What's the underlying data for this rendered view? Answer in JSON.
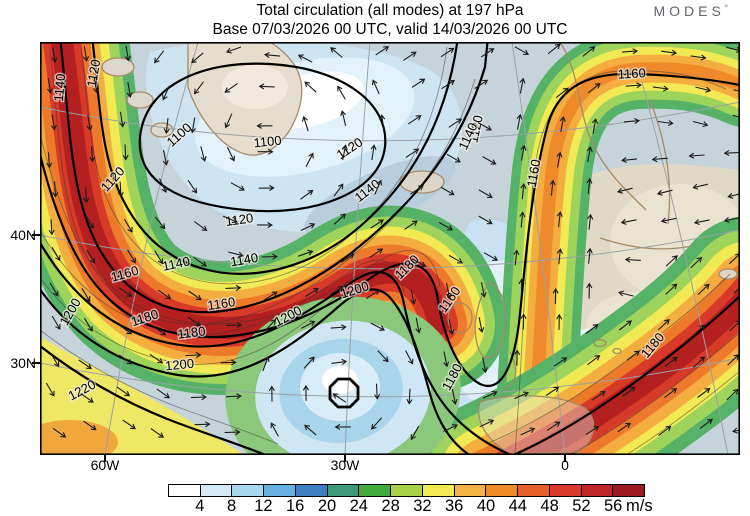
{
  "header": {
    "title": "Total circulation (all modes) at 197 hPa",
    "subtitle": "Base 07/03/2026 00 UTC, valid 14/03/2026 00 UTC"
  },
  "logo": {
    "text": "MODES",
    "sup": "°"
  },
  "axes": {
    "y_ticks": [
      "40N",
      "30N"
    ],
    "x_ticks": [
      "60W",
      "30W",
      "0"
    ]
  },
  "colorbar": {
    "unit": "m/s",
    "ticks": [
      4,
      8,
      12,
      16,
      20,
      24,
      28,
      32,
      36,
      40,
      44,
      48,
      52,
      56
    ],
    "colors": [
      "#ffffff",
      "#d3ebf4",
      "#a6d7ef",
      "#66b1e0",
      "#3f7fc1",
      "#3b9878",
      "#42a93c",
      "#a9d046",
      "#f3eb54",
      "#f3b148",
      "#ee8a2b",
      "#e65f28",
      "#d93a2b",
      "#c02627",
      "#9c1a1e"
    ]
  },
  "chart_data": {
    "type": "heatmap",
    "title": "Total circulation (all modes) at 197 hPa",
    "subtitle": "Base 07/03/2026 00 UTC, valid 14/03/2026 00 UTC",
    "level": "197 hPa",
    "base_time": "07/03/2026 00 UTC",
    "valid_time": "14/03/2026 00 UTC",
    "unit": "m/s",
    "color_scale": {
      "boundaries": [
        4,
        8,
        12,
        16,
        20,
        24,
        28,
        32,
        36,
        40,
        44,
        48,
        52,
        56
      ],
      "colors": [
        "#ffffff",
        "#d3ebf4",
        "#a6d7ef",
        "#66b1e0",
        "#3f7fc1",
        "#3b9878",
        "#42a93c",
        "#a9d046",
        "#f3eb54",
        "#f3b148",
        "#ee8a2b",
        "#e65f28",
        "#d93a2b",
        "#c02627",
        "#9c1a1e"
      ]
    },
    "contour_labels": [
      "1100",
      "1120",
      "1140",
      "1160",
      "1180",
      "1200",
      "1220"
    ],
    "x_tick_labels": [
      "60W",
      "30W",
      "0"
    ],
    "y_tick_labels": [
      "40N",
      "30N"
    ],
    "overlays": [
      "black streamfunction contours 1100-1220",
      "wind direction arrows",
      "gray graticule",
      "tan coastlines"
    ]
  }
}
